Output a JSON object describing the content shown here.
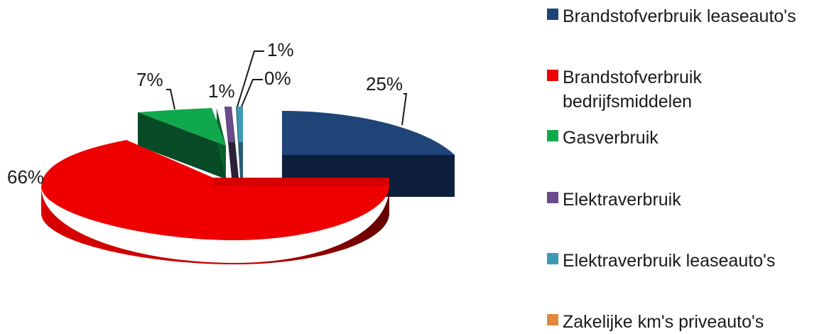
{
  "chart_data": {
    "type": "pie",
    "style": "3d-exploded",
    "title": "",
    "categories": [
      "Brandstofverbruik leaseauto's",
      "Brandstofverbruik bedrijfsmiddelen",
      "Gasverbruik",
      "Elektraverbruik",
      "Elektraverbruik leaseauto's",
      "Zakelijke km's priveauto's"
    ],
    "values": [
      25,
      66,
      7,
      1,
      1,
      0
    ],
    "data_labels": [
      "25%",
      "66%",
      "7%",
      "1%",
      "1%",
      "0%"
    ],
    "colors": [
      "#1f4478",
      "#ee0000",
      "#10a84c",
      "#6a4c8c",
      "#3b9bb5",
      "#e0893e"
    ],
    "legend_position": "right"
  }
}
